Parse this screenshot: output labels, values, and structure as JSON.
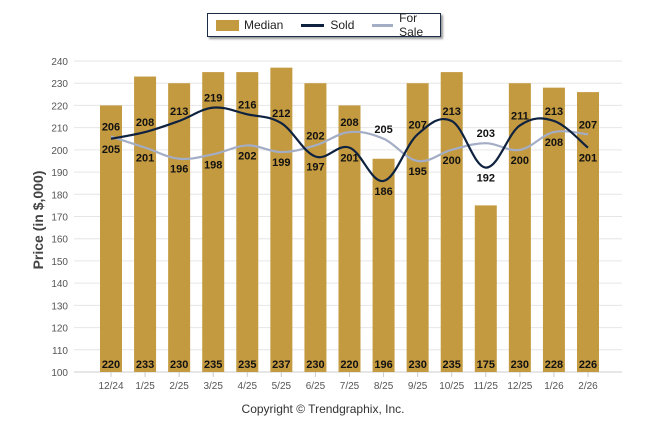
{
  "chart_data": {
    "type": "bar",
    "title": "",
    "xlabel": "",
    "ylabel": "Price (in $,000)",
    "ylim": [
      100,
      240
    ],
    "yticks": [
      100,
      110,
      120,
      130,
      140,
      150,
      160,
      170,
      180,
      190,
      200,
      210,
      220,
      230,
      240
    ],
    "grid": true,
    "legend_position": "top-center",
    "categories": [
      "12/24",
      "1/25",
      "2/25",
      "3/25",
      "4/25",
      "5/25",
      "6/25",
      "7/25",
      "8/25",
      "9/25",
      "10/25",
      "11/25",
      "12/25",
      "1/26",
      "2/26"
    ],
    "series": [
      {
        "name": "Median",
        "kind": "bar",
        "color": "#c49a40",
        "values": [
          220,
          233,
          230,
          235,
          235,
          237,
          230,
          220,
          196,
          230,
          235,
          175,
          230,
          228,
          226
        ]
      },
      {
        "name": "Sold",
        "kind": "line",
        "color": "#0e2240",
        "values": [
          205,
          208,
          213,
          219,
          216,
          212,
          197,
          201,
          186,
          207,
          213,
          192,
          211,
          213,
          201
        ]
      },
      {
        "name": "For Sale",
        "kind": "line",
        "color": "#a3adc5",
        "values": [
          206,
          201,
          196,
          198,
          202,
          199,
          202,
          208,
          205,
          195,
          200,
          203,
          200,
          208,
          207
        ]
      }
    ]
  },
  "legend": {
    "items": [
      {
        "label": "Median",
        "color": "#c49a40"
      },
      {
        "label": "Sold",
        "color": "#0e2240"
      },
      {
        "label": "For Sale",
        "color": "#a3adc5"
      }
    ]
  },
  "footer": {
    "copyright": "Copyright © Trendgraphix, Inc."
  }
}
